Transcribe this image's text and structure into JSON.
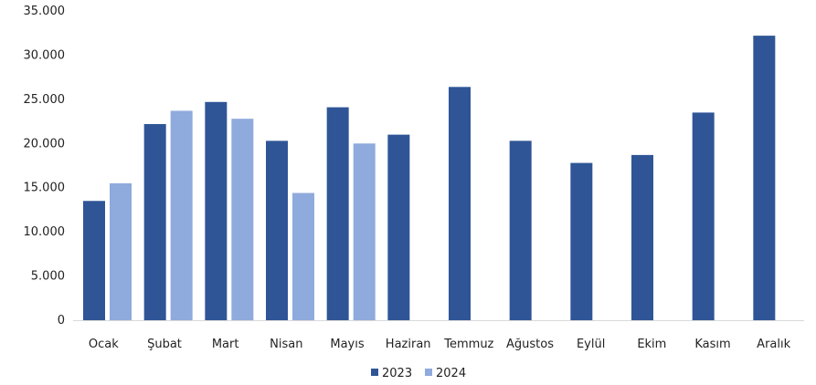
{
  "chart_data": {
    "type": "bar",
    "categories": [
      "Ocak",
      "Şubat",
      "Mart",
      "Nisan",
      "Mayıs",
      "Haziran",
      "Temmuz",
      "Ağustos",
      "Eylül",
      "Ekim",
      "Kasım",
      "Aralık"
    ],
    "series": [
      {
        "name": "2023",
        "color": "#2F5597",
        "values": [
          13500,
          22200,
          24700,
          20300,
          24100,
          21000,
          26400,
          20300,
          17800,
          18700,
          23500,
          32200
        ]
      },
      {
        "name": "2024",
        "color": "#8FAADC",
        "values": [
          15500,
          23700,
          22800,
          14400,
          20000,
          null,
          null,
          null,
          null,
          null,
          null,
          null
        ]
      }
    ],
    "ylim": [
      0,
      35000
    ],
    "yticks": [
      0,
      5000,
      10000,
      15000,
      20000,
      25000,
      30000,
      35000
    ],
    "ytick_labels": [
      "0",
      "5.000",
      "10.000",
      "15.000",
      "20.000",
      "25.000",
      "30.000",
      "35.000"
    ],
    "grid": false,
    "legend": "bottom",
    "title": "",
    "xlabel": "",
    "ylabel": ""
  }
}
